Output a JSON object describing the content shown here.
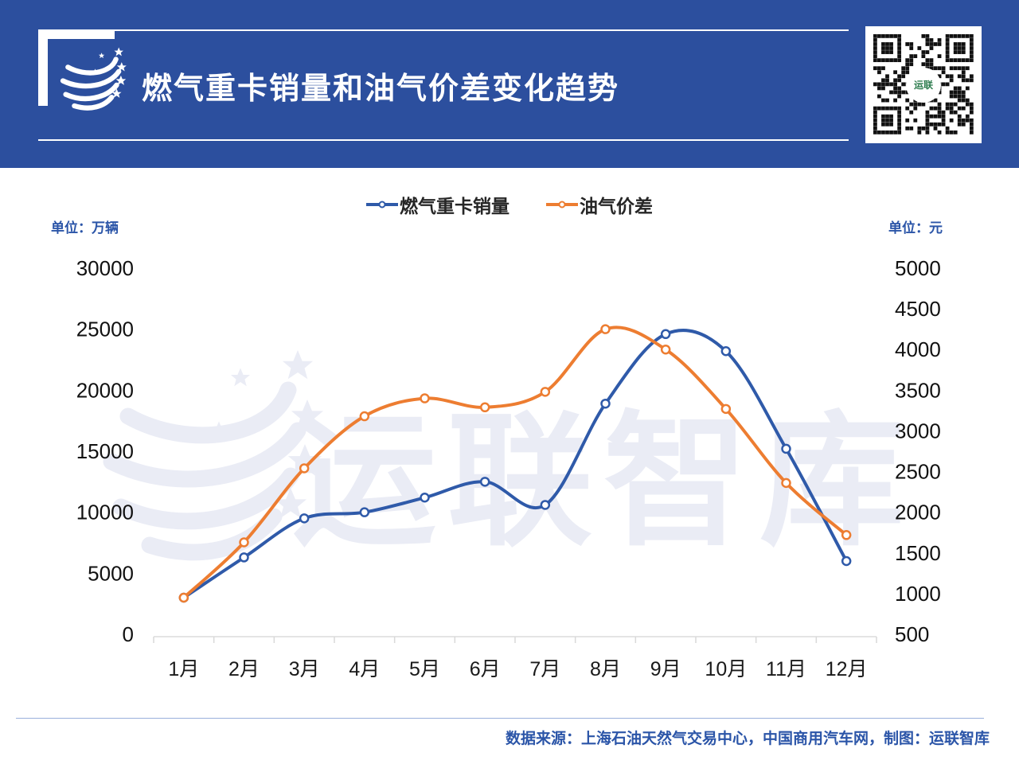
{
  "header": {
    "title": "燃气重卡销量和油气价差变化趋势",
    "bg_color": "#2c4f9e",
    "qr_center_label": "运联"
  },
  "units": {
    "left": "单位：万辆",
    "right": "单位：元"
  },
  "legend": [
    {
      "label": "燃气重卡销量",
      "color": "#2f5aa9"
    },
    {
      "label": "油气价差",
      "color": "#ed7d31"
    }
  ],
  "watermark": {
    "text": "运联智库",
    "color": "#eaecf5"
  },
  "footer": {
    "source": "数据来源：上海石油天然气交易中心，中国商用汽车网，制图：运联智库"
  },
  "chart_data": {
    "type": "line",
    "title": "燃气重卡销量和油气价差变化趋势",
    "categories": [
      "1月",
      "2月",
      "3月",
      "4月",
      "5月",
      "6月",
      "7月",
      "8月",
      "9月",
      "10月",
      "11月",
      "12月"
    ],
    "series": [
      {
        "name": "燃气重卡销量",
        "axis": "left",
        "color": "#2f5aa9",
        "values": [
          3000,
          6300,
          9500,
          10000,
          11200,
          12500,
          10600,
          18900,
          24600,
          23200,
          15200,
          6000
        ]
      },
      {
        "name": "油气价差",
        "axis": "right",
        "color": "#ed7d31",
        "values": [
          950,
          1630,
          2540,
          3180,
          3400,
          3290,
          3480,
          4250,
          4000,
          3270,
          2360,
          1720
        ]
      }
    ],
    "left_axis": {
      "label": "单位：万辆",
      "min": 0,
      "max": 30000,
      "ticks": [
        30000,
        25000,
        20000,
        15000,
        10000,
        5000,
        0
      ]
    },
    "right_axis": {
      "label": "单位：元",
      "min": 500,
      "max": 5000,
      "ticks": [
        5000,
        4500,
        4000,
        3500,
        3000,
        2500,
        2000,
        1500,
        1000,
        500
      ]
    },
    "grid": false,
    "legend_position": "top",
    "smooth": true
  }
}
